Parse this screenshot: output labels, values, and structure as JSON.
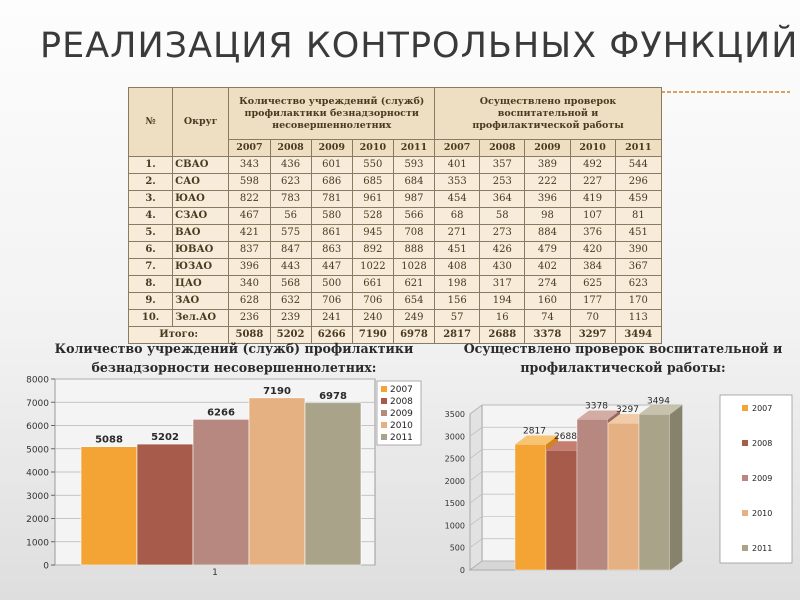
{
  "page": {
    "title": "РЕАЛИЗАЦИЯ КОНТРОЛЬНЫХ ФУНКЦИЙ"
  },
  "table": {
    "col_no": "№",
    "col_okrug": "Округ",
    "group1": "Количество учреждений (служб) профилактики безнадзорности несовершеннолетних",
    "group2": "Осуществлено проверок воспитательной и профилактической работы",
    "years": [
      "2007",
      "2008",
      "2009",
      "2010",
      "2011"
    ],
    "rows": [
      {
        "no": "1.",
        "okrug": "СВАО",
        "a": [
          343,
          436,
          601,
          550,
          593
        ],
        "b": [
          401,
          357,
          389,
          492,
          544
        ]
      },
      {
        "no": "2.",
        "okrug": "САО",
        "a": [
          598,
          623,
          686,
          685,
          684
        ],
        "b": [
          353,
          253,
          222,
          227,
          296
        ]
      },
      {
        "no": "3.",
        "okrug": "ЮАО",
        "a": [
          822,
          783,
          781,
          961,
          987
        ],
        "b": [
          454,
          364,
          396,
          419,
          459
        ]
      },
      {
        "no": "4.",
        "okrug": "СЗАО",
        "a": [
          467,
          56,
          580,
          528,
          566
        ],
        "b": [
          68,
          58,
          98,
          107,
          81
        ]
      },
      {
        "no": "5.",
        "okrug": "ВАО",
        "a": [
          421,
          575,
          861,
          945,
          708
        ],
        "b": [
          271,
          273,
          884,
          376,
          451
        ]
      },
      {
        "no": "6.",
        "okrug": "ЮВАО",
        "a": [
          837,
          847,
          863,
          892,
          888
        ],
        "b": [
          451,
          426,
          479,
          420,
          390
        ]
      },
      {
        "no": "7.",
        "okrug": "ЮЗАО",
        "a": [
          396,
          443,
          447,
          1022,
          1028
        ],
        "b": [
          408,
          430,
          402,
          384,
          367
        ]
      },
      {
        "no": "8.",
        "okrug": "ЦАО",
        "a": [
          340,
          568,
          500,
          661,
          621
        ],
        "b": [
          198,
          317,
          274,
          625,
          623
        ]
      },
      {
        "no": "9.",
        "okrug": "ЗАО",
        "a": [
          628,
          632,
          706,
          706,
          654
        ],
        "b": [
          156,
          194,
          160,
          177,
          170
        ]
      },
      {
        "no": "10.",
        "okrug": "Зел.АО",
        "a": [
          236,
          239,
          241,
          240,
          249
        ],
        "b": [
          57,
          16,
          74,
          70,
          113
        ]
      }
    ],
    "total_label": "Итого:",
    "total_a": [
      5088,
      5202,
      6266,
      7190,
      6978
    ],
    "total_b": [
      2817,
      2688,
      3378,
      3297,
      3494
    ]
  },
  "captions": {
    "left": "Количество учреждений (служб) профилактики безнадзорности несовершеннолетних:",
    "right": "Осуществлено проверок воспитательной и профилактической работы:"
  },
  "colors": {
    "series": [
      "#f3a435",
      "#a75b4b",
      "#b7887f",
      "#e6b182",
      "#a8a389"
    ],
    "series_side": [
      "#d3841b",
      "#853f31",
      "#946961",
      "#c49062",
      "#86826c"
    ],
    "series_top": [
      "#f8c372",
      "#c57e6f",
      "#d3aca4",
      "#f2cca8",
      "#c6c2ab"
    ]
  },
  "chart_data": [
    {
      "type": "bar",
      "categories": [
        "1"
      ],
      "series": [
        {
          "name": "2007",
          "values": [
            5088
          ]
        },
        {
          "name": "2008",
          "values": [
            5202
          ]
        },
        {
          "name": "2009",
          "values": [
            6266
          ]
        },
        {
          "name": "2010",
          "values": [
            7190
          ]
        },
        {
          "name": "2011",
          "values": [
            6978
          ]
        }
      ],
      "y_ticks": [
        "0",
        "1000",
        "2000",
        "3000",
        "4000",
        "5000",
        "6000",
        "7000",
        "8000"
      ],
      "ylim": [
        0,
        8000
      ],
      "legend": "right",
      "grid": true
    },
    {
      "type": "bar",
      "categories": [
        ""
      ],
      "series": [
        {
          "name": "2007",
          "values": [
            2817
          ]
        },
        {
          "name": "2008",
          "values": [
            2688
          ]
        },
        {
          "name": "2009",
          "values": [
            3378
          ]
        },
        {
          "name": "2010",
          "values": [
            3297
          ]
        },
        {
          "name": "2011",
          "values": [
            3494
          ]
        }
      ],
      "y_ticks": [
        "0",
        "500",
        "1000",
        "1500",
        "2000",
        "2500",
        "3000",
        "3500"
      ],
      "ylim": [
        0,
        3500
      ],
      "legend": "right",
      "grid": true,
      "style": "3d"
    }
  ]
}
